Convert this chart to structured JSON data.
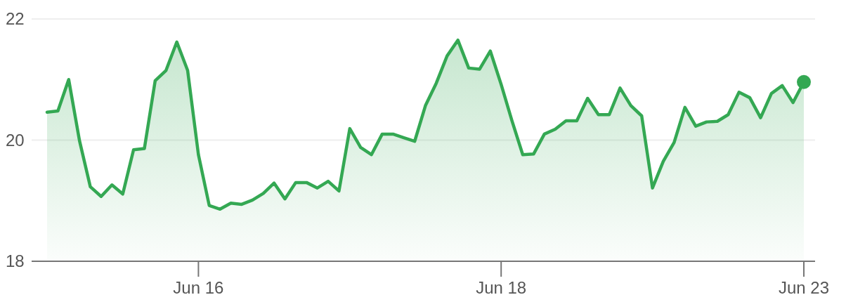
{
  "chart_data": {
    "type": "area",
    "categories": [
      null,
      null,
      null,
      null,
      null,
      null,
      null,
      null,
      null,
      null,
      null,
      null,
      null,
      null,
      "Jun 16",
      null,
      null,
      null,
      null,
      null,
      null,
      null,
      null,
      null,
      null,
      null,
      null,
      null,
      null,
      null,
      null,
      null,
      null,
      null,
      null,
      null,
      null,
      null,
      null,
      null,
      null,
      null,
      "Jun 18",
      null,
      null,
      null,
      null,
      null,
      null,
      null,
      null,
      null,
      null,
      null,
      null,
      null,
      null,
      null,
      null,
      null,
      null,
      null,
      null,
      null,
      null,
      null,
      null,
      null,
      null,
      null,
      "Jun 23"
    ],
    "series": [
      {
        "color": "#34a853",
        "values": [
          20.46,
          20.48,
          21.0,
          19.99,
          19.23,
          19.07,
          19.26,
          19.11,
          19.84,
          19.86,
          20.98,
          21.15,
          21.62,
          21.15,
          19.76,
          18.92,
          18.86,
          18.96,
          18.94,
          19.01,
          19.12,
          19.29,
          19.03,
          19.3,
          19.3,
          19.21,
          19.32,
          19.16,
          20.19,
          19.88,
          19.76,
          20.1,
          20.1,
          20.04,
          19.98,
          20.57,
          20.94,
          21.39,
          21.65,
          21.19,
          21.17,
          21.47,
          20.92,
          20.32,
          19.76,
          19.77,
          20.1,
          20.18,
          20.32,
          20.32,
          20.69,
          20.42,
          20.42,
          20.86,
          20.57,
          20.4,
          19.21,
          19.65,
          19.96,
          20.54,
          20.23,
          20.3,
          20.31,
          20.42,
          20.79,
          20.7,
          20.37,
          20.77,
          20.9,
          20.62,
          20.96
        ]
      }
    ],
    "ylim": [
      18,
      22
    ],
    "yticks": [
      18,
      20,
      22
    ],
    "grid": "y"
  }
}
